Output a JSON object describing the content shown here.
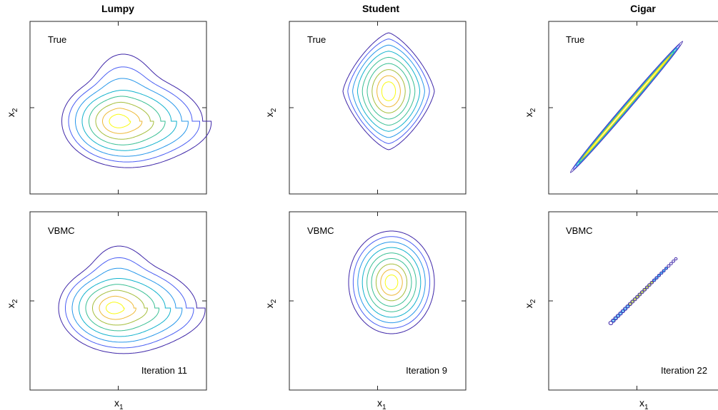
{
  "figure": {
    "columns": [
      {
        "title": "Lumpy"
      },
      {
        "title": "Student"
      },
      {
        "title": "Cigar"
      }
    ],
    "row_labels": [
      "True",
      "VBMC"
    ],
    "xlabel": "x",
    "xlabel_sub": "1",
    "ylabel": "x",
    "ylabel_sub": "2",
    "iterations": [
      "Iteration 11",
      "Iteration 9",
      "Iteration 22"
    ]
  },
  "chart_data": [
    {
      "type": "contour",
      "column": "Lumpy",
      "row": "True",
      "levels": 8,
      "colormap": [
        "#3e26a8",
        "#4a5ef3",
        "#2797ea",
        "#12b2cd",
        "#3abf94",
        "#a5be3c",
        "#eeb938",
        "#f9fb15"
      ],
      "shape": "lumpy",
      "grid": false
    },
    {
      "type": "contour",
      "column": "Student",
      "row": "True",
      "levels": 9,
      "shape": "student-t",
      "grid": false
    },
    {
      "type": "contour",
      "column": "Cigar",
      "row": "True",
      "levels": 6,
      "shape": "cigar",
      "grid": false
    },
    {
      "type": "contour",
      "column": "Lumpy",
      "row": "VBMC",
      "levels": 8,
      "shape": "lumpy",
      "annotation": "Iteration 11"
    },
    {
      "type": "contour",
      "column": "Student",
      "row": "VBMC",
      "levels": 9,
      "shape": "gaussian-ellipse",
      "annotation": "Iteration 9"
    },
    {
      "type": "contour",
      "column": "Cigar",
      "row": "VBMC",
      "levels": 6,
      "shape": "cigar-mixture",
      "annotation": "Iteration 22"
    }
  ]
}
